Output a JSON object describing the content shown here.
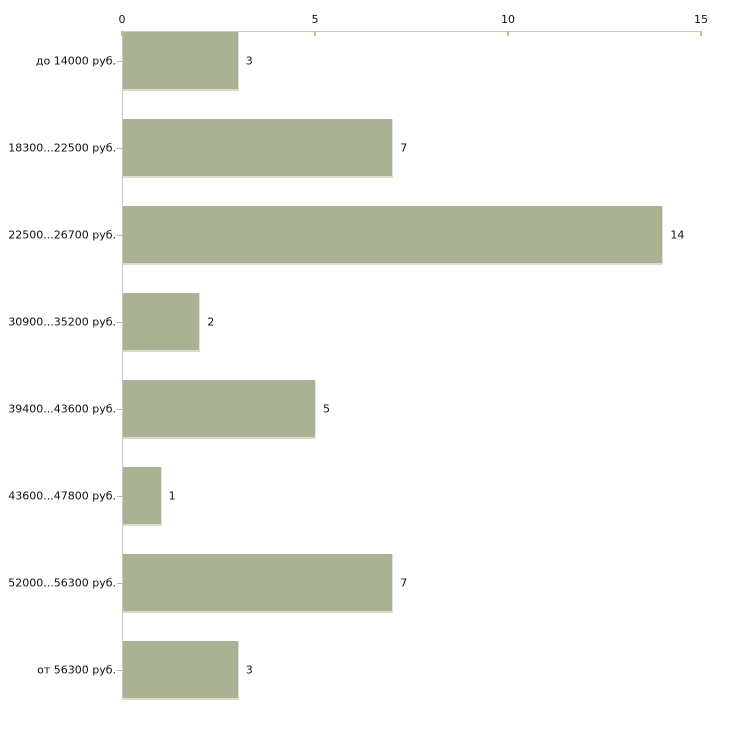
{
  "chart_data": {
    "type": "bar",
    "orientation": "horizontal",
    "title": "",
    "xlabel": "",
    "ylabel": "",
    "categories": [
      "до 14000 руб.",
      "18300...22500 руб.",
      "22500...26700 руб.",
      "30900...35200 руб.",
      "39400...43600 руб.",
      "43600...47800 руб.",
      "52000...56300 руб.",
      "от 56300 руб."
    ],
    "values": [
      3,
      7,
      14,
      2,
      5,
      1,
      7,
      3
    ],
    "x_ticks": [
      0,
      5,
      10,
      15
    ],
    "xlim": [
      0,
      15
    ],
    "grid": false,
    "legend": false,
    "axis_position": "top",
    "colors": {
      "bar_fill": "#a9b295",
      "bar_edge_bottom": "#d9dcc9",
      "bar_edge_right": "#e3e5d8",
      "axis_line": "#c9c9c9",
      "tick_mark": "#bcc194",
      "category_tick_mark": "#b6ba98",
      "label_text": "#111111",
      "background": "#ffffff"
    }
  }
}
